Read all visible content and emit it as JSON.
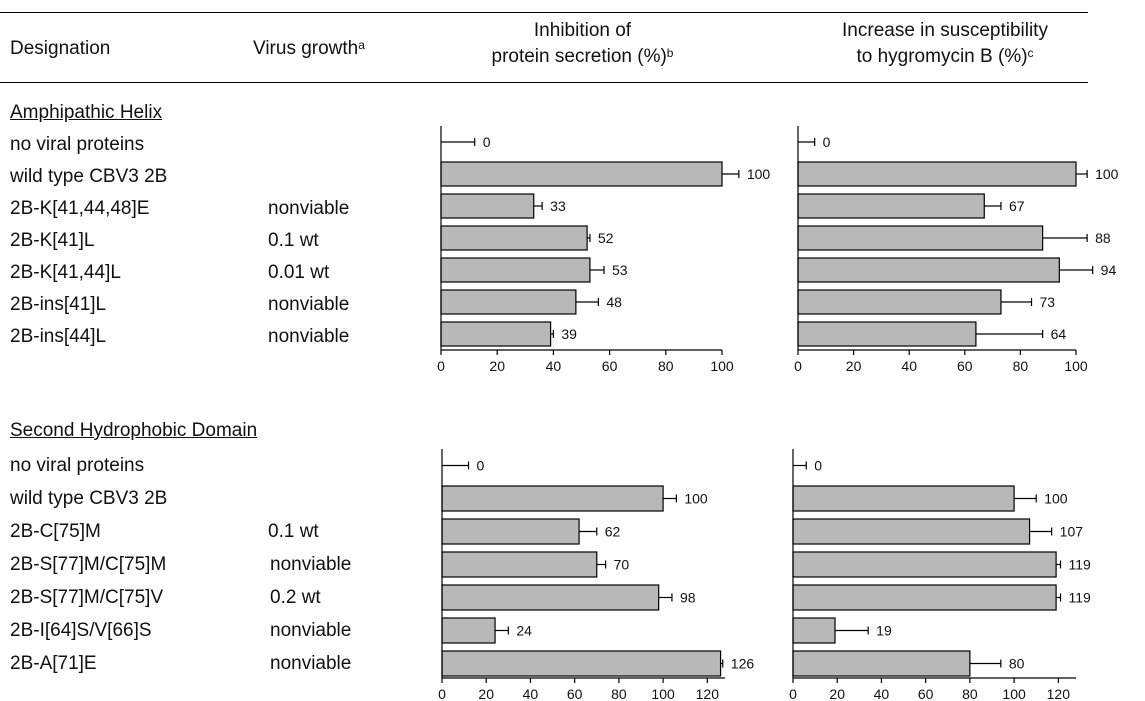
{
  "headers": {
    "designation": "Designation",
    "virus_growth": "Virus growth",
    "virus_growth_sup": "a",
    "inhibition_line1": "Inhibition of",
    "inhibition_line2": "protein secretion (%)",
    "inhibition_sup": "b",
    "susceptibility_line1": "Increase in susceptibility",
    "susceptibility_line2": "to hygromycin B (%)",
    "susceptibility_sup": "c"
  },
  "chart_data": [
    {
      "type": "bar",
      "orientation": "horizontal",
      "section": "Amphipathic Helix",
      "metric": "Inhibition of protein secretion (%)",
      "categories": [
        "no viral proteins",
        "wild type CBV3 2B",
        "2B-K[41,44,48]E",
        "2B-K[41]L",
        "2B-K[41,44]L",
        "2B-ins[41]L",
        "2B-ins[44]L"
      ],
      "values": [
        0,
        100,
        33,
        52,
        53,
        48,
        39
      ],
      "errors": [
        12,
        6,
        3,
        1,
        5,
        8,
        1
      ],
      "labels": [
        "0",
        "100",
        "33",
        "52",
        "53",
        "48",
        "39"
      ],
      "xlim": [
        0,
        100
      ],
      "xticks": [
        0,
        20,
        40,
        60,
        80,
        100
      ]
    },
    {
      "type": "bar",
      "orientation": "horizontal",
      "section": "Amphipathic Helix",
      "metric": "Increase in susceptibility to hygromycin B (%)",
      "categories": [
        "no viral proteins",
        "wild type CBV3 2B",
        "2B-K[41,44,48]E",
        "2B-K[41]L",
        "2B-K[41,44]L",
        "2B-ins[41]L",
        "2B-ins[44]L"
      ],
      "values": [
        0,
        100,
        67,
        88,
        94,
        73,
        64
      ],
      "errors": [
        6,
        4,
        6,
        16,
        12,
        11,
        24
      ],
      "labels": [
        "0",
        "100",
        "67",
        "88",
        "94",
        "73",
        "64"
      ],
      "xlim": [
        0,
        100
      ],
      "xticks": [
        0,
        20,
        40,
        60,
        80,
        100
      ]
    },
    {
      "type": "bar",
      "orientation": "horizontal",
      "section": "Second Hydrophobic Domain",
      "metric": "Inhibition of protein secretion (%)",
      "categories": [
        "no viral proteins",
        "wild type CBV3 2B",
        "2B-C[75]M",
        "2B-S[77]M/C[75]M",
        "2B-S[77]M/C[75]V",
        "2B-I[64]S/V[66]S",
        "2B-A[71]E"
      ],
      "values": [
        0,
        100,
        62,
        70,
        98,
        24,
        126
      ],
      "errors": [
        12,
        6,
        8,
        4,
        6,
        6,
        1
      ],
      "labels": [
        "0",
        "100",
        "62",
        "70",
        "98",
        "24",
        "126"
      ],
      "xlim": [
        0,
        128
      ],
      "xticks": [
        0,
        20,
        40,
        60,
        80,
        100,
        120
      ]
    },
    {
      "type": "bar",
      "orientation": "horizontal",
      "section": "Second Hydrophobic Domain",
      "metric": "Increase in susceptibility to hygromycin B (%)",
      "categories": [
        "no viral proteins",
        "wild type CBV3 2B",
        "2B-C[75]M",
        "2B-S[77]M/C[75]M",
        "2B-S[77]M/C[75]V",
        "2B-I[64]S/V[66]S",
        "2B-A[71]E"
      ],
      "values": [
        0,
        100,
        107,
        119,
        119,
        19,
        80
      ],
      "errors": [
        6,
        10,
        10,
        2,
        2,
        15,
        14
      ],
      "labels": [
        "0",
        "100",
        "107",
        "119",
        "119",
        "19",
        "80"
      ],
      "xlim": [
        0,
        128
      ],
      "xticks": [
        0,
        20,
        40,
        60,
        80,
        100,
        120
      ]
    }
  ],
  "sections": [
    {
      "title": "Amphipathic Helix",
      "rows": [
        {
          "designation": "no viral proteins",
          "growth": ""
        },
        {
          "designation": "wild type CBV3 2B",
          "growth": ""
        },
        {
          "designation": "2B-K[41,44,48]E",
          "growth": "nonviable"
        },
        {
          "designation": "2B-K[41]L",
          "growth": "0.1 wt"
        },
        {
          "designation": "2B-K[41,44]L",
          "growth": "0.01 wt"
        },
        {
          "designation": "2B-ins[41]L",
          "growth": "nonviable"
        },
        {
          "designation": "2B-ins[44]L",
          "growth": "nonviable"
        }
      ]
    },
    {
      "title": "Second Hydrophobic Domain",
      "rows": [
        {
          "designation": "no viral proteins",
          "growth": ""
        },
        {
          "designation": "wild type CBV3 2B",
          "growth": ""
        },
        {
          "designation": "2B-C[75]M",
          "growth": "0.1 wt"
        },
        {
          "designation": "2B-S[77]M/C[75]M",
          "growth": "nonviable"
        },
        {
          "designation": "2B-S[77]M/C[75]V",
          "growth": "0.2 wt"
        },
        {
          "designation": "2B-I[64]S/V[66]S",
          "growth": "nonviable"
        },
        {
          "designation": "2B-A[71]E",
          "growth": "nonviable"
        }
      ]
    }
  ]
}
